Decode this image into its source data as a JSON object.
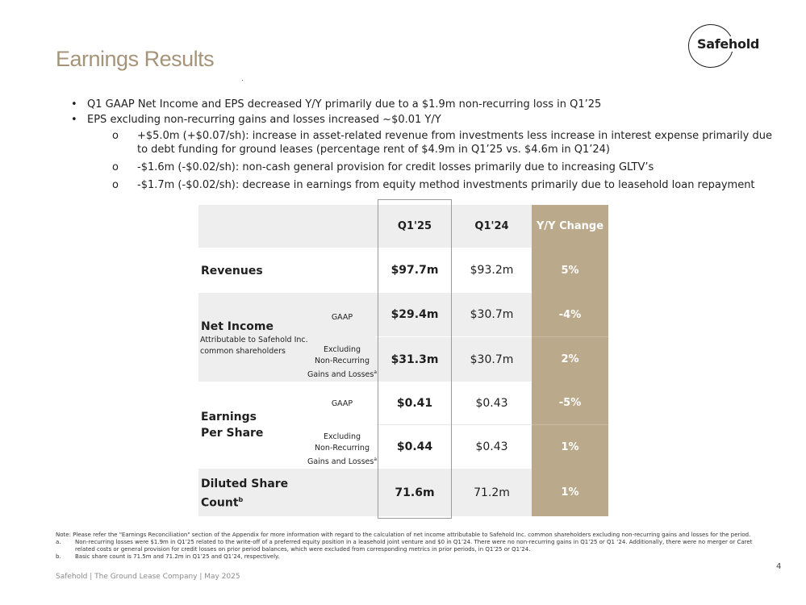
{
  "title": "Earnings Results",
  "logo": {
    "text": "Safehold"
  },
  "bullets": [
    {
      "text": "Q1 GAAP Net Income and EPS decreased Y/Y primarily due to a $1.9m non-recurring loss in Q1’25"
    },
    {
      "text": "EPS excluding non-recurring gains and losses increased ~$0.01 Y/Y",
      "sub": [
        {
          "marker": "o",
          "text": "+$5.0m (+$0.07/sh): increase in asset-related revenue from investments less increase in interest expense primarily due to debt funding for ground leases (percentage rent of $4.9m in Q1’25 vs. $4.6m in Q1’24)"
        },
        {
          "marker": "o",
          "text": "-$1.6m (-$0.02/sh): non-cash general provision for credit losses primarily due to increasing GLTV’s"
        },
        {
          "marker": "o",
          "text": "-$1.7m (-$0.02/sh): decrease in earnings from equity method investments primarily due to leasehold loan repayment"
        }
      ]
    }
  ],
  "table": {
    "headers": {
      "q125": "Q1'25",
      "q124": "Q1'24",
      "yy": "Y/Y Change"
    },
    "revenues": {
      "label": "Revenues",
      "q125": "$97.7m",
      "q124": "$93.2m",
      "yy": "5%"
    },
    "net_income": {
      "label": "Net Income",
      "sublabel": "Attributable to Safehold Inc. common shareholders",
      "gaap_label": "GAAP",
      "excl_label_1": "Excluding",
      "excl_label_2": "Non-Recurring",
      "excl_label_3": "Gains and Losses",
      "excl_sup": "a",
      "gaap": {
        "q125": "$29.4m",
        "q124": "$30.7m",
        "yy": "-4%"
      },
      "excl": {
        "q125": "$31.3m",
        "q124": "$30.7m",
        "yy": "2%"
      }
    },
    "eps": {
      "label_1": "Earnings",
      "label_2": "Per Share",
      "gaap_label": "GAAP",
      "excl_label_1": "Excluding",
      "excl_label_2": "Non-Recurring",
      "excl_label_3": "Gains and Losses",
      "excl_sup": "a",
      "gaap": {
        "q125": "$0.41",
        "q124": "$0.43",
        "yy": "-5%"
      },
      "excl": {
        "q125": "$0.44",
        "q124": "$0.43",
        "yy": "1%"
      }
    },
    "shares": {
      "label_1": "Diluted Share",
      "label_2": "Count",
      "sup": "b",
      "q125": "71.6m",
      "q124": "71.2m",
      "yy": "1%"
    }
  },
  "notes": {
    "intro": "Note: Please refer the \"Earnings Reconciliation\" section of the Appendix for more information with regard to the calculation of net income attributable to Safehold Inc. common shareholders excluding non-recurring gains and losses for the period.",
    "a_marker": "a.",
    "a_text": "Non-recurring losses were $1.9m in Q1’25 related to the write-off of a preferred equity position in a leasehold joint venture and $0 in Q1’24. There were no non-recurring gains in Q1’25 or Q1 ‘24. Additionally, there were no merger or Caret related costs or general provision for credit losses on prior period balances, which were excluded from corresponding metrics in prior periods, in Q1’25 or Q1’24.",
    "b_marker": "b.",
    "b_text": "Basic share count is 71.5m and 71.2m in Q1’25 and Q1’24, respectively."
  },
  "footer": "Safehold | The Ground Lease Company | May 2025",
  "page_number": "4",
  "colors": {
    "title": "#a59479",
    "yy_column": "#bba98b",
    "band": "#eeeeee"
  }
}
